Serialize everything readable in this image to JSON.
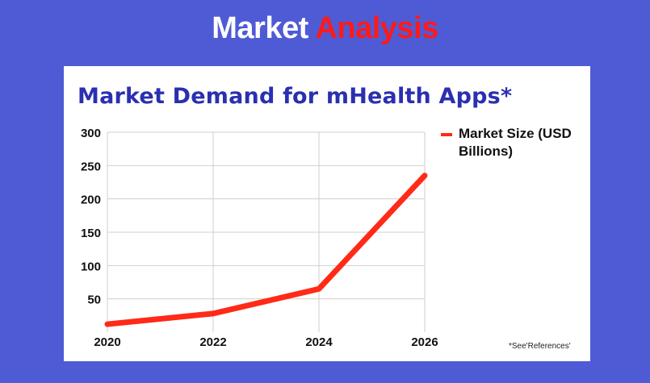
{
  "header": {
    "word1": "Market",
    "word2": "Analysis"
  },
  "footnote": "*See'References'",
  "colors": {
    "background": "#4f5bd5",
    "title": "#2b2fb0",
    "line": "#ff2a17",
    "header_accent": "#ff1a1a"
  },
  "chart_data": {
    "type": "line",
    "title": "Market Demand for mHealth Apps*",
    "xlabel": "",
    "ylabel": "",
    "x": [
      2020,
      2022,
      2024,
      2026
    ],
    "x_ticks": [
      "2020",
      "2022",
      "2024",
      "2026"
    ],
    "y_ticks": [
      "50",
      "100",
      "150",
      "200",
      "250",
      "300"
    ],
    "ylim": [
      0,
      300
    ],
    "grid": true,
    "legend_position": "top-right",
    "series": [
      {
        "name": "Market Size (USD Billions)",
        "values": [
          12,
          28,
          65,
          235
        ]
      }
    ]
  }
}
